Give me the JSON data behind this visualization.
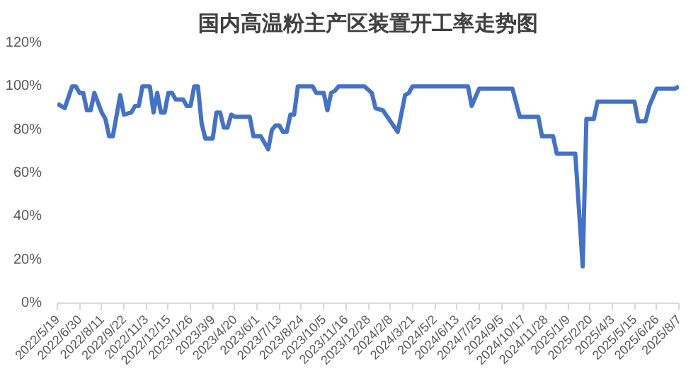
{
  "chart_data": {
    "type": "line",
    "title": "国内高温粉主产区装置开工率走势图",
    "x": [
      "2022-05-19",
      "2022-05-26",
      "2022-06-02",
      "2022-06-16",
      "2022-06-23",
      "2022-06-30",
      "2022-07-07",
      "2022-07-14",
      "2022-07-21",
      "2022-07-28",
      "2022-08-11",
      "2022-08-18",
      "2022-08-25",
      "2022-09-01",
      "2022-09-15",
      "2022-09-22",
      "2022-10-06",
      "2022-10-13",
      "2022-10-20",
      "2022-10-27",
      "2022-11-10",
      "2022-11-17",
      "2022-11-24",
      "2022-12-01",
      "2022-12-08",
      "2022-12-15",
      "2022-12-22",
      "2022-12-29",
      "2023-01-12",
      "2023-01-19",
      "2023-01-26",
      "2023-02-02",
      "2023-02-09",
      "2023-02-16",
      "2023-02-23",
      "2023-03-09",
      "2023-03-16",
      "2023-03-23",
      "2023-03-30",
      "2023-04-06",
      "2023-04-13",
      "2023-04-20",
      "2023-05-18",
      "2023-05-25",
      "2023-06-08",
      "2023-06-22",
      "2023-06-29",
      "2023-07-06",
      "2023-07-13",
      "2023-07-20",
      "2023-07-27",
      "2023-08-03",
      "2023-08-10",
      "2023-08-17",
      "2023-09-14",
      "2023-09-21",
      "2023-10-05",
      "2023-10-12",
      "2023-10-19",
      "2023-10-26",
      "2023-11-02",
      "2023-12-21",
      "2024-01-04",
      "2024-01-11",
      "2024-01-25",
      "2024-02-08",
      "2024-02-22",
      "2024-03-07",
      "2024-03-14",
      "2024-03-21",
      "2024-07-04",
      "2024-07-11",
      "2024-07-25",
      "2024-09-26",
      "2024-10-10",
      "2024-11-14",
      "2024-11-21",
      "2024-12-12",
      "2024-12-19",
      "2025-01-23",
      "2025-02-06",
      "2025-02-13",
      "2025-02-27",
      "2025-03-06",
      "2025-05-15",
      "2025-05-22",
      "2025-06-05",
      "2025-06-12",
      "2025-06-26",
      "2025-07-31",
      "2025-08-07"
    ],
    "series": [
      {
        "color": "#4472c4",
        "values": [
          92,
          91,
          90,
          100,
          100,
          97,
          97,
          89,
          89,
          97,
          88,
          85,
          77,
          77,
          96,
          87,
          88,
          91,
          91,
          100,
          100,
          88,
          97,
          88,
          88,
          97,
          97,
          94,
          94,
          91,
          91,
          100,
          100,
          83,
          76,
          76,
          88,
          88,
          81,
          81,
          87,
          86,
          86,
          77,
          77,
          71,
          80,
          82,
          82,
          79,
          79,
          87,
          87,
          100,
          100,
          97,
          97,
          89,
          97,
          98,
          100,
          100,
          97,
          90,
          89,
          84,
          79,
          96,
          97,
          100,
          100,
          91,
          99,
          99,
          86,
          86,
          77,
          77,
          69,
          69,
          17,
          85,
          85,
          93,
          93,
          84,
          84,
          91,
          99,
          99,
          100
        ]
      }
    ],
    "xlim": [
      "2022-05-19",
      "2025-08-07"
    ],
    "xticks": [
      {
        "value": "2022-05-19",
        "label": "2022/5/19"
      },
      {
        "value": "2022-06-30",
        "label": "2022/6/30"
      },
      {
        "value": "2022-08-11",
        "label": "2022/8/11"
      },
      {
        "value": "2022-09-22",
        "label": "2022/9/22"
      },
      {
        "value": "2022-11-03",
        "label": "2022/11/3"
      },
      {
        "value": "2022-12-15",
        "label": "2022/12/15"
      },
      {
        "value": "2023-01-26",
        "label": "2023/1/26"
      },
      {
        "value": "2023-03-09",
        "label": "2023/3/9"
      },
      {
        "value": "2023-04-20",
        "label": "2023/4/20"
      },
      {
        "value": "2023-06-01",
        "label": "2023/6/1"
      },
      {
        "value": "2023-07-13",
        "label": "2023/7/13"
      },
      {
        "value": "2023-08-24",
        "label": "2023/8/24"
      },
      {
        "value": "2023-10-05",
        "label": "2023/10/5"
      },
      {
        "value": "2023-11-16",
        "label": "2023/11/16"
      },
      {
        "value": "2023-12-28",
        "label": "2023/12/28"
      },
      {
        "value": "2024-02-08",
        "label": "2024/2/8"
      },
      {
        "value": "2024-03-21",
        "label": "2024/3/21"
      },
      {
        "value": "2024-05-02",
        "label": "2024/5/2"
      },
      {
        "value": "2024-06-13",
        "label": "2024/6/13"
      },
      {
        "value": "2024-07-25",
        "label": "2024/7/25"
      },
      {
        "value": "2024-09-05",
        "label": "2024/9/5"
      },
      {
        "value": "2024-10-17",
        "label": "2024/10/17"
      },
      {
        "value": "2024-11-28",
        "label": "2024/11/28"
      },
      {
        "value": "2025-01-09",
        "label": "2025/1/9"
      },
      {
        "value": "2025-02-20",
        "label": "2025/2/20"
      },
      {
        "value": "2025-04-03",
        "label": "2025/4/3"
      },
      {
        "value": "2025-05-15",
        "label": "2025/5/15"
      },
      {
        "value": "2025-06-26",
        "label": "2025/6/26"
      },
      {
        "value": "2025-08-07",
        "label": "2025/8/7"
      }
    ],
    "ylim": [
      0,
      120
    ],
    "yticks": [
      {
        "value": 0,
        "label": "0%"
      },
      {
        "value": 20,
        "label": "20%"
      },
      {
        "value": 40,
        "label": "40%"
      },
      {
        "value": 60,
        "label": "60%"
      },
      {
        "value": 80,
        "label": "80%"
      },
      {
        "value": 100,
        "label": "100%"
      },
      {
        "value": 120,
        "label": "120%"
      }
    ],
    "grid": false,
    "marker": "none",
    "line_style": "solid"
  }
}
